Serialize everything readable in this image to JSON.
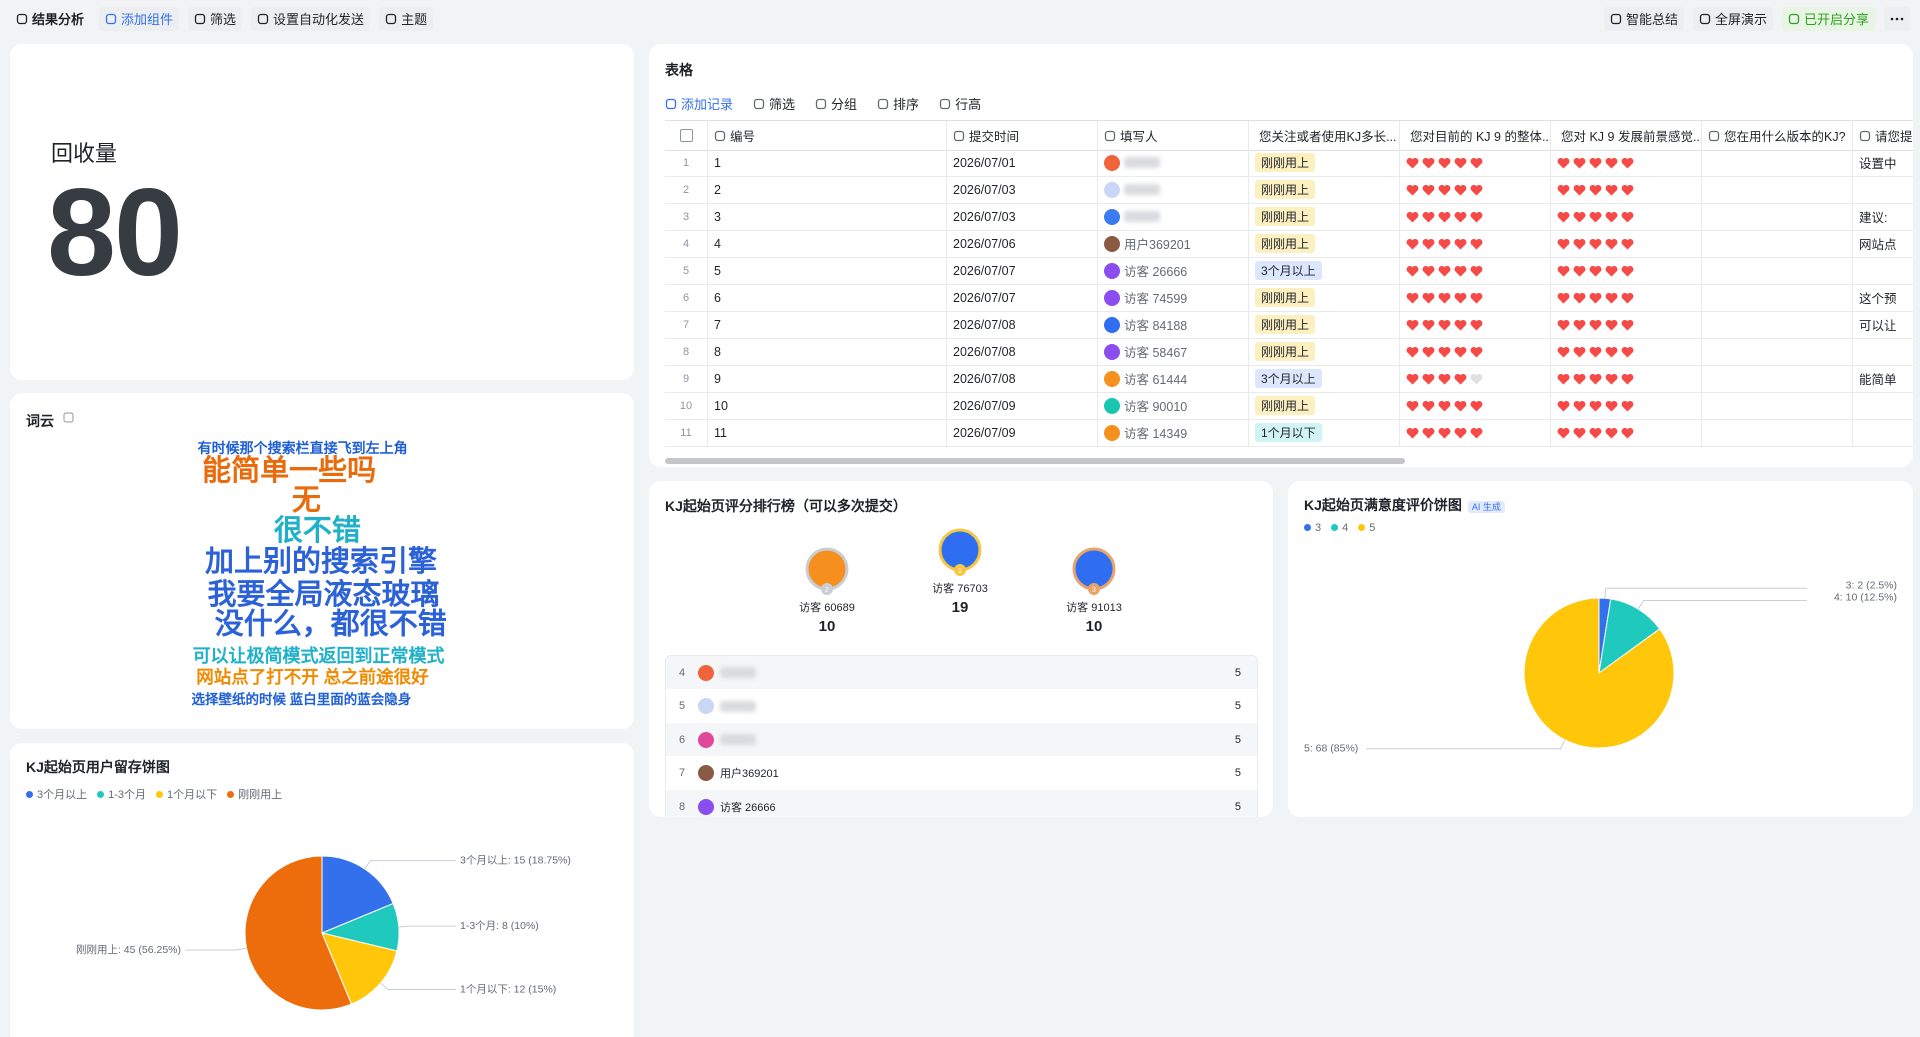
{
  "toolbar": {
    "left": [
      "结果分析",
      "添加组件",
      "筛选",
      "设置自动化发送",
      "主题"
    ],
    "right": [
      "智能总结",
      "全屏演示",
      "已开启分享"
    ]
  },
  "kpi": {
    "title": "回收量",
    "value": 80
  },
  "wordcloud": {
    "title": "词云",
    "words": [
      {
        "text": "有时候那个搜索栏直接飞到左上角",
        "color": "#1f5fd6"
      },
      {
        "text": "能简单一些吗",
        "color": "#ea6b0c"
      },
      {
        "text": "无",
        "color": "#ea6b0c"
      },
      {
        "text": "很不错",
        "color": "#1fb1c9"
      },
      {
        "text": "加上别的搜索引擎",
        "color": "#2c62d8"
      },
      {
        "text": "我要全局液态玻璃",
        "color": "#2c62d8"
      },
      {
        "text": "没什么，都很不错",
        "color": "#2c62d8"
      },
      {
        "text": "可以让极简模式返回到正常模式",
        "color": "#1fb1c9"
      },
      {
        "text": "网站点了打不开 总之前途很好",
        "color": "#f08a00"
      },
      {
        "text": "选择壁纸的时候 蓝白里面的蓝会隐身",
        "color": "#1f5fd6"
      }
    ]
  },
  "chart_data": [
    {
      "type": "pie",
      "title": "KJ起始页用户留存饼图",
      "categories": [
        "3个月以上",
        "1-3个月",
        "1个月以下",
        "刚刚用上"
      ],
      "values": [
        15,
        8,
        12,
        45
      ],
      "value_labels": [
        "3个月以上: 15 (18.75%)",
        "1-3个月: 8 (10%)",
        "1个月以下: 12 (15%)",
        "刚刚用上: 45 (56.25%)"
      ],
      "colors": [
        "#3370eb",
        "#1fc9bd",
        "#ffc60a",
        "#ed6d0c"
      ],
      "legend": "top-left"
    },
    {
      "type": "pie",
      "title": "KJ起始页满意度评价饼图",
      "badge": "AI 生成",
      "categories": [
        "3",
        "4",
        "5"
      ],
      "values": [
        2,
        10,
        68
      ],
      "value_labels": [
        "3: 2 (2.5%)",
        "4: 10 (12.5%)",
        "5: 68 (85%)"
      ],
      "colors": [
        "#3370eb",
        "#1fc9bd",
        "#ffc60a"
      ],
      "legend": "top-left"
    }
  ],
  "table": {
    "title": "表格",
    "toolbar": [
      "添加记录",
      "筛选",
      "分组",
      "排序",
      "行高"
    ],
    "columns": [
      "编号",
      "提交时间",
      "填写人",
      "您关注或者使用KJ多长...",
      "您对目前的 KJ 9 的整体...",
      "您对 KJ 9 发展前景感觉...",
      "您在用什么版本的KJ?",
      "请您提"
    ],
    "rating_max": 5,
    "tag_colors": {
      "刚刚用上": "#fcefc0",
      "3个月以上": "#dce7fd",
      "1个月以下": "#d2f3f5"
    },
    "rows": [
      [
        1,
        "2026/07/01",
        null,
        "刚刚用上",
        5,
        5,
        null,
        "设置中"
      ],
      [
        2,
        "2026/07/03",
        null,
        "刚刚用上",
        5,
        5,
        null,
        null
      ],
      [
        3,
        "2026/07/03",
        null,
        "刚刚用上",
        5,
        5,
        null,
        "建议:"
      ],
      [
        4,
        "2026/07/06",
        "用户369201",
        "刚刚用上",
        5,
        5,
        null,
        "网站点"
      ],
      [
        5,
        "2026/07/07",
        "访客 26666",
        "3个月以上",
        5,
        5,
        null,
        null
      ],
      [
        6,
        "2026/07/07",
        "访客 74599",
        "刚刚用上",
        5,
        5,
        null,
        "这个预"
      ],
      [
        7,
        "2026/07/08",
        "访客 84188",
        "刚刚用上",
        5,
        5,
        null,
        "可以让"
      ],
      [
        8,
        "2026/07/08",
        "访客 58467",
        "刚刚用上",
        5,
        5,
        null,
        null
      ],
      [
        9,
        "2026/07/08",
        "访客 61444",
        "3个月以上",
        4,
        5,
        null,
        "能简单"
      ],
      [
        10,
        "2026/07/09",
        "访客 90010",
        "刚刚用上",
        5,
        5,
        null,
        null
      ],
      [
        11,
        "2026/07/09",
        "访客 14349",
        "1个月以下",
        5,
        5,
        null,
        null
      ]
    ]
  },
  "leaderboard": {
    "title": "KJ起始页评分排行榜（可以多次提交）",
    "entries": [
      {
        "rank": 1,
        "name": "访客 76703",
        "score": 19
      },
      {
        "rank": 2,
        "name": "访客 60689",
        "score": 10
      },
      {
        "rank": 3,
        "name": "访客 91013",
        "score": 10
      },
      {
        "rank": 4,
        "name": null,
        "score": 5
      },
      {
        "rank": 5,
        "name": null,
        "score": 5
      },
      {
        "rank": 6,
        "name": null,
        "score": 5
      },
      {
        "rank": 7,
        "name": "用户369201",
        "score": 5
      },
      {
        "rank": 8,
        "name": "访客 26666",
        "score": 5
      }
    ]
  }
}
